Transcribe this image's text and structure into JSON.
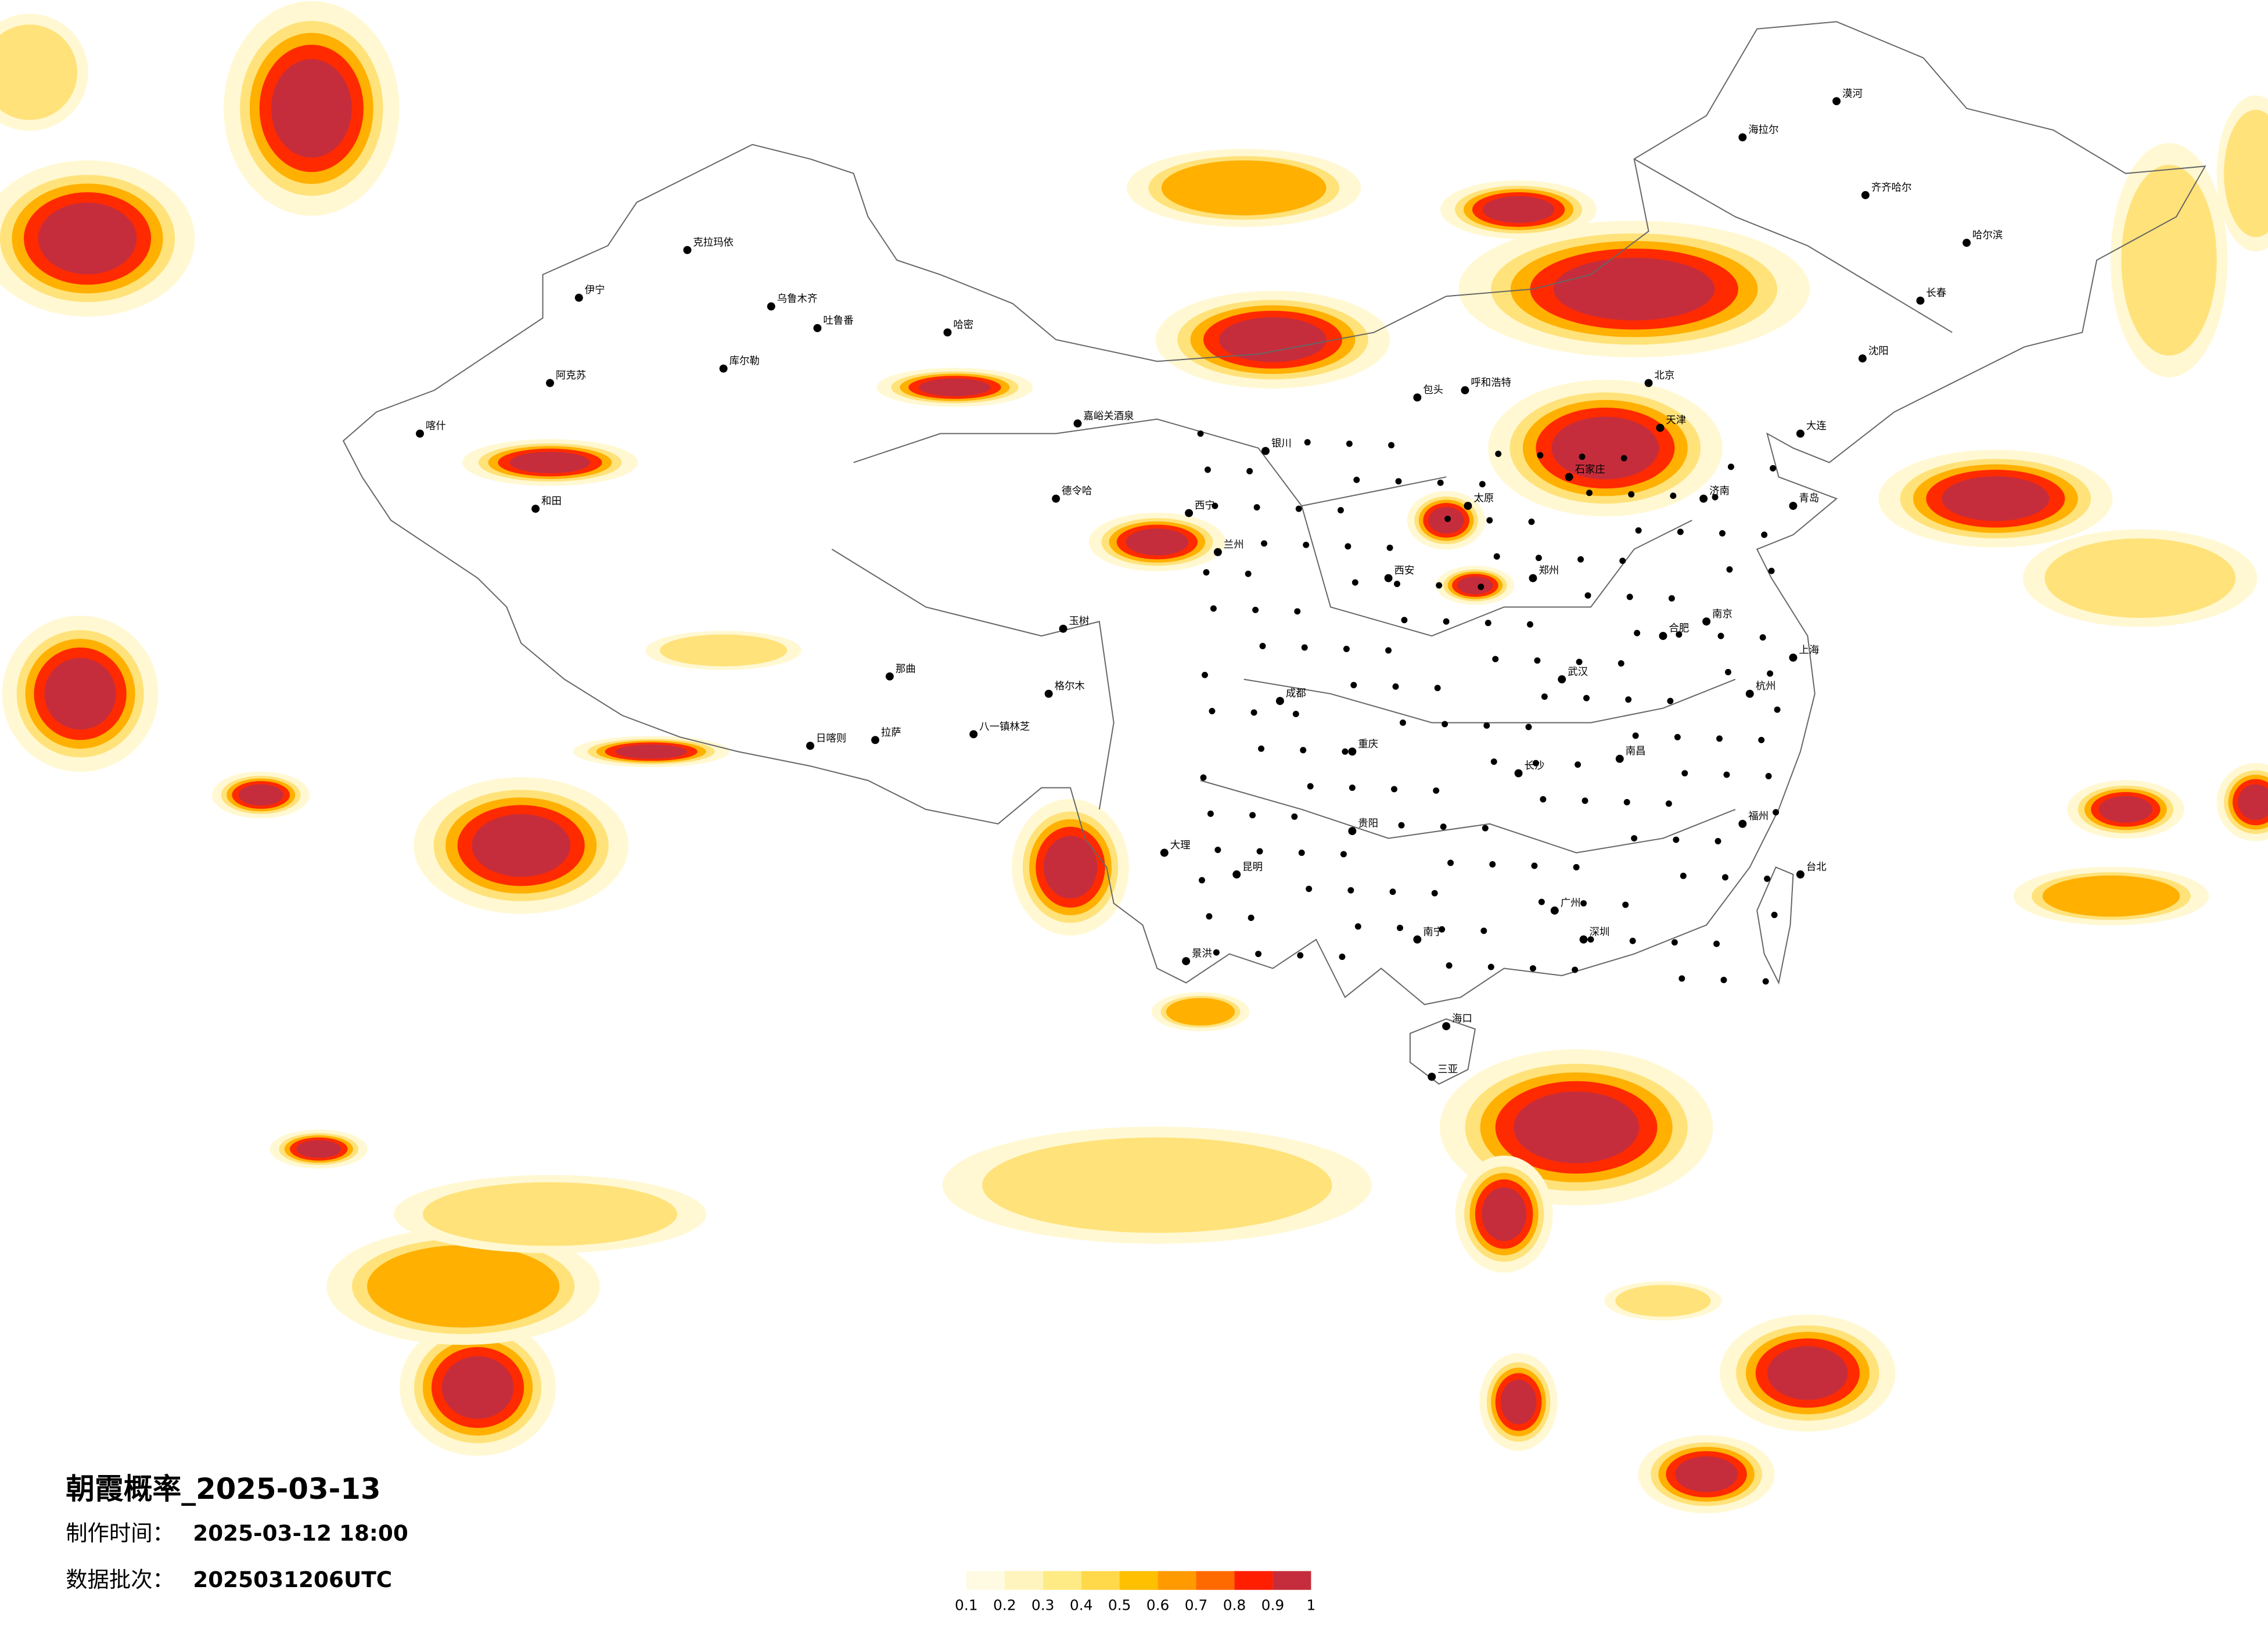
{
  "title": "朝霞概率_2025-03-13",
  "made_time_label": "制作时间：",
  "made_time": "2025-03-12 18:00",
  "batch_label": "数据批次：",
  "batch": "2025031206UTC",
  "legend": {
    "colors": [
      "#fffbe3",
      "#fff4bd",
      "#ffeb86",
      "#ffd94a",
      "#ffc000",
      "#ff9a00",
      "#ff6a00",
      "#ff1e00",
      "#c62d3c"
    ],
    "labels": [
      0.1,
      0.2,
      0.3,
      0.4,
      0.5,
      0.6,
      0.7,
      0.8,
      0.9,
      1
    ]
  },
  "cities": [
    "克拉玛依",
    "乌鲁木齐",
    "吐鲁番",
    "哈密",
    "伊宁",
    "阿克苏",
    "库尔勒",
    "喀什",
    "和田",
    "嘉峪关酒泉",
    "德令哈",
    "西宁",
    "格尔木",
    "那曲",
    "拉萨",
    "日喀则",
    "八一镇林芝",
    "玉树",
    "兰州",
    "银川",
    "呼和浩特",
    "包头",
    "北京",
    "天津",
    "石家庄",
    "太原",
    "济南",
    "青岛",
    "大连",
    "沈阳",
    "长春",
    "哈尔滨",
    "齐齐哈尔",
    "海拉尔",
    "漠河",
    "郑州",
    "西安",
    "武汉",
    "南京",
    "上海",
    "杭州",
    "合肥",
    "南昌",
    "长沙",
    "福州",
    "台北",
    "广州",
    "深圳",
    "南宁",
    "海口",
    "三亚",
    "贵阳",
    "昆明",
    "成都",
    "重庆",
    "大理",
    "景洪"
  ]
}
